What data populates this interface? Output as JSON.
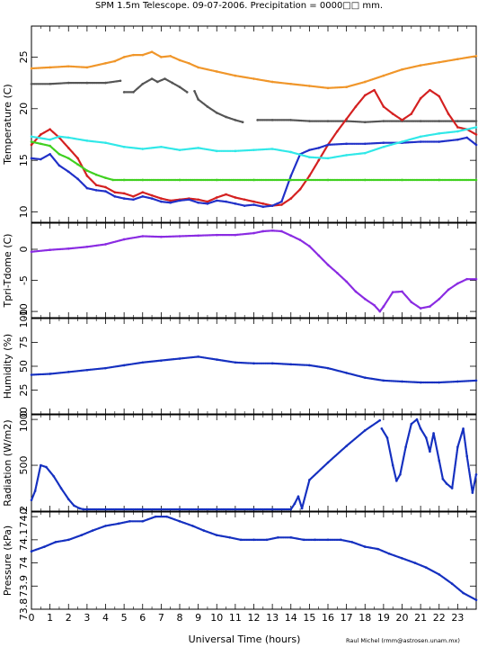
{
  "title": "SPM 1.5m Telescope. 09-07-2006. Precipitation = 0000□□ mm.",
  "credit": "Raul Michel (rmm@astrosen.unam.mx)",
  "colors": {
    "orange": "#f0962a",
    "gray": "#555555",
    "red": "#d42020",
    "blue": "#2030c8",
    "cyan": "#30e8e8",
    "green": "#40d020",
    "purple": "#8a2be2",
    "navy": "#1530c0"
  },
  "chart_data": [
    {
      "id": "temperature",
      "type": "scatter",
      "ylabel": "Temperature (C)",
      "ylim": [
        9,
        28
      ],
      "yticks": [
        10,
        15,
        20,
        25
      ],
      "xlim": [
        0,
        24
      ],
      "series": [
        {
          "color": "orange",
          "x": [
            0,
            1,
            2,
            3,
            4,
            4.5,
            5,
            5.5,
            6,
            6.5,
            7,
            7.5,
            8,
            8.5,
            9,
            10,
            11,
            12,
            13,
            14,
            15,
            16,
            17,
            18,
            19,
            20,
            21,
            22,
            23,
            24
          ],
          "y": [
            23.9,
            24.0,
            24.1,
            24.0,
            24.4,
            24.6,
            25.0,
            25.2,
            25.2,
            25.5,
            25.0,
            25.1,
            24.7,
            24.4,
            24.0,
            23.6,
            23.2,
            22.9,
            22.6,
            22.4,
            22.2,
            22.0,
            22.1,
            22.6,
            23.2,
            23.8,
            24.2,
            24.5,
            24.8,
            25.1
          ]
        },
        {
          "color": "gray",
          "x": [
            0,
            1,
            2,
            3,
            4,
            4.8
          ],
          "y": [
            22.4,
            22.4,
            22.5,
            22.5,
            22.5,
            22.7
          ]
        },
        {
          "color": "gray",
          "x": [
            5,
            5.5,
            6,
            6.5,
            6.8,
            7.2,
            7.6,
            8,
            8.4
          ],
          "y": [
            21.6,
            21.6,
            22.4,
            22.9,
            22.6,
            22.9,
            22.5,
            22.1,
            21.6
          ]
        },
        {
          "color": "gray",
          "x": [
            8.8,
            9,
            9.5,
            10,
            10.5,
            11,
            11.4
          ],
          "y": [
            21.7,
            20.9,
            20.2,
            19.6,
            19.2,
            18.9,
            18.7
          ]
        },
        {
          "color": "gray",
          "x": [
            12.2,
            13,
            14,
            15,
            16,
            17,
            18,
            19,
            20,
            21,
            22,
            23,
            24
          ],
          "y": [
            18.9,
            18.9,
            18.9,
            18.8,
            18.8,
            18.8,
            18.7,
            18.8,
            18.8,
            18.8,
            18.8,
            18.8,
            18.8
          ]
        },
        {
          "color": "red",
          "x": [
            0,
            0.5,
            1,
            1.5,
            2,
            2.5,
            3,
            3.5,
            4,
            4.5,
            5,
            5.5,
            6,
            6.5,
            7,
            7.5,
            8,
            8.5,
            9,
            9.5,
            10,
            10.5,
            11,
            11.5,
            12,
            12.5,
            13,
            13.5,
            14,
            14.5,
            15,
            15.5,
            16,
            16.5,
            17,
            17.5,
            18,
            18.5,
            19,
            19.5,
            20,
            20.5,
            21,
            21.5,
            22,
            22.5,
            23,
            23.5,
            24
          ],
          "y": [
            16.5,
            17.5,
            18.0,
            17.2,
            16.2,
            15.2,
            13.5,
            12.6,
            12.4,
            11.9,
            11.8,
            11.5,
            11.9,
            11.6,
            11.3,
            11.1,
            11.2,
            11.3,
            11.2,
            11.0,
            11.4,
            11.7,
            11.4,
            11.2,
            11.0,
            10.8,
            10.6,
            10.7,
            11.3,
            12.2,
            13.5,
            15.0,
            16.5,
            17.8,
            19.0,
            20.2,
            21.3,
            21.8,
            20.2,
            19.5,
            18.9,
            19.5,
            21.0,
            21.8,
            21.2,
            19.5,
            18.2,
            18.0,
            17.5
          ]
        },
        {
          "color": "blue",
          "x": [
            0,
            0.5,
            1,
            1.5,
            2,
            2.5,
            3,
            3.5,
            4,
            4.5,
            5,
            5.5,
            6,
            6.5,
            7,
            7.5,
            8,
            8.5,
            9,
            9.5,
            10,
            10.5,
            11,
            11.5,
            12,
            12.5,
            13,
            13.5,
            14,
            14.5,
            15,
            15.5,
            16,
            17,
            18,
            19,
            20,
            21,
            22,
            23,
            23.5,
            24
          ],
          "y": [
            15.2,
            15.1,
            15.6,
            14.5,
            13.9,
            13.2,
            12.3,
            12.1,
            12.0,
            11.5,
            11.3,
            11.2,
            11.5,
            11.3,
            11.0,
            10.9,
            11.1,
            11.2,
            10.9,
            10.8,
            11.1,
            11.0,
            10.8,
            10.6,
            10.7,
            10.5,
            10.6,
            11.0,
            13.5,
            15.6,
            16.0,
            16.2,
            16.5,
            16.6,
            16.6,
            16.7,
            16.7,
            16.8,
            16.8,
            17.0,
            17.2,
            16.5
          ]
        },
        {
          "color": "cyan",
          "x": [
            0,
            1,
            1.5,
            2,
            3,
            4,
            5,
            6,
            7,
            8,
            9,
            10,
            11,
            12,
            13,
            14,
            15,
            16,
            17,
            18,
            19,
            20,
            21,
            22,
            23,
            24
          ],
          "y": [
            17.3,
            17.0,
            17.3,
            17.2,
            16.9,
            16.7,
            16.3,
            16.1,
            16.3,
            16.0,
            16.2,
            15.9,
            15.9,
            16.0,
            16.1,
            15.8,
            15.3,
            15.2,
            15.5,
            15.7,
            16.3,
            16.8,
            17.3,
            17.6,
            17.8,
            18.2
          ]
        },
        {
          "color": "green",
          "x": [
            0,
            0.5,
            1,
            1.5,
            2,
            2.5,
            3,
            3.5,
            4,
            4.4,
            5,
            6,
            8,
            10,
            12,
            14,
            16,
            18,
            20,
            22,
            24
          ],
          "y": [
            16.8,
            16.6,
            16.4,
            15.6,
            15.2,
            14.6,
            14.0,
            13.6,
            13.3,
            13.1,
            13.1,
            13.1,
            13.1,
            13.1,
            13.1,
            13.1,
            13.1,
            13.1,
            13.1,
            13.1,
            13.1
          ]
        }
      ]
    },
    {
      "id": "tpri-tdome",
      "type": "scatter",
      "ylabel": "Tpri-Tdome (C)",
      "ylim": [
        -11,
        4.2
      ],
      "yticks": [
        0,
        -5,
        -10
      ],
      "xlim": [
        0,
        24
      ],
      "series": [
        {
          "color": "purple",
          "x": [
            0,
            1,
            2,
            3,
            4,
            5,
            6,
            7,
            8,
            9,
            10,
            11,
            12,
            12.5,
            13,
            13.5,
            14,
            14.5,
            15,
            15.5,
            16,
            16.5,
            17,
            17.5,
            18,
            18.5,
            18.8,
            19,
            19.5,
            20,
            20.5,
            21,
            21.5,
            22,
            22.5,
            23,
            23.5,
            24
          ],
          "y": [
            -0.4,
            -0.1,
            0.1,
            0.4,
            0.8,
            1.6,
            2.1,
            2.0,
            2.1,
            2.2,
            2.3,
            2.3,
            2.6,
            2.9,
            3.0,
            2.9,
            2.2,
            1.5,
            0.5,
            -1.0,
            -2.5,
            -3.8,
            -5.2,
            -6.8,
            -8.0,
            -9.0,
            -10.0,
            -9.2,
            -6.9,
            -6.8,
            -8.5,
            -9.5,
            -9.2,
            -8.0,
            -6.5,
            -5.5,
            -4.8,
            -4.8
          ]
        }
      ]
    },
    {
      "id": "humidity",
      "type": "scatter",
      "ylabel": "Humidity (%)",
      "ylim": [
        0,
        100
      ],
      "yticks": [
        0,
        25,
        50,
        75,
        100
      ],
      "xlim": [
        0,
        24
      ],
      "series": [
        {
          "color": "navy",
          "x": [
            0,
            1,
            2,
            3,
            4,
            5,
            6,
            7,
            8,
            9,
            10,
            11,
            12,
            13,
            14,
            15,
            16,
            17,
            18,
            19,
            20,
            21,
            22,
            23,
            24
          ],
          "y": [
            41,
            42,
            44,
            46,
            48,
            51,
            54,
            56,
            58,
            60,
            57,
            54,
            53,
            53,
            52,
            51,
            48,
            43,
            38,
            35,
            34,
            33,
            33,
            34,
            35
          ]
        }
      ]
    },
    {
      "id": "radiation",
      "type": "scatter",
      "ylabel": "Radiation (W/m2)",
      "ylim": [
        0,
        1050
      ],
      "yticks": [
        0,
        500,
        1000
      ],
      "xlim": [
        0,
        24
      ],
      "series": [
        {
          "color": "navy",
          "x": [
            0,
            0.2,
            0.5,
            0.8,
            1.2,
            1.6,
            2,
            2.3,
            2.6,
            2.8,
            3,
            4,
            6,
            8,
            10,
            12,
            13,
            14,
            14.2,
            14.4,
            14.6,
            15,
            16,
            17,
            18,
            18.8
          ],
          "y": [
            120,
            220,
            500,
            480,
            380,
            250,
            130,
            60,
            30,
            20,
            20,
            20,
            20,
            20,
            20,
            20,
            20,
            20,
            80,
            160,
            30,
            340,
            530,
            710,
            880,
            990
          ]
        },
        {
          "color": "navy",
          "x": [
            18.9,
            19.2,
            19.5,
            19.7,
            19.9,
            20.2,
            20.5,
            20.8,
            21,
            21.3,
            21.5,
            21.7,
            22,
            22.2,
            22.4,
            22.7,
            23,
            23.3,
            23.5,
            23.8,
            24
          ],
          "y": [
            900,
            800,
            500,
            330,
            400,
            700,
            950,
            1000,
            900,
            800,
            650,
            850,
            550,
            350,
            300,
            250,
            700,
            900,
            600,
            200,
            400
          ]
        }
      ]
    },
    {
      "id": "pressure",
      "type": "scatter",
      "ylabel": "Pressure (kPa)",
      "ylim": [
        73.8,
        74.22
      ],
      "yticks": [
        73.8,
        73.9,
        74,
        74.1,
        74.2
      ],
      "xlim": [
        0,
        24
      ],
      "xticks": [
        0,
        1,
        2,
        3,
        4,
        5,
        6,
        7,
        8,
        9,
        10,
        11,
        12,
        13,
        14,
        15,
        16,
        17,
        18,
        19,
        20,
        21,
        22,
        23
      ],
      "xlabel": "Universal Time (hours)",
      "series": [
        {
          "color": "navy",
          "x": [
            0,
            0.7,
            1.3,
            2,
            2.7,
            3.3,
            4,
            4.7,
            5.3,
            6,
            6.7,
            7.3,
            8,
            8.7,
            9.3,
            10,
            10.7,
            11.3,
            12,
            12.7,
            13.3,
            14,
            14.7,
            15.3,
            16,
            16.7,
            17.3,
            18,
            18.7,
            19.3,
            20,
            20.7,
            21.3,
            22,
            22.7,
            23.3,
            24
          ],
          "y": [
            74.05,
            74.07,
            74.09,
            74.1,
            74.12,
            74.14,
            74.16,
            74.17,
            74.18,
            74.18,
            74.2,
            74.2,
            74.18,
            74.16,
            74.14,
            74.12,
            74.11,
            74.1,
            74.1,
            74.1,
            74.11,
            74.11,
            74.1,
            74.1,
            74.1,
            74.1,
            74.09,
            74.07,
            74.06,
            74.04,
            74.02,
            74.0,
            73.98,
            73.95,
            73.91,
            73.87,
            73.84
          ]
        }
      ]
    }
  ]
}
